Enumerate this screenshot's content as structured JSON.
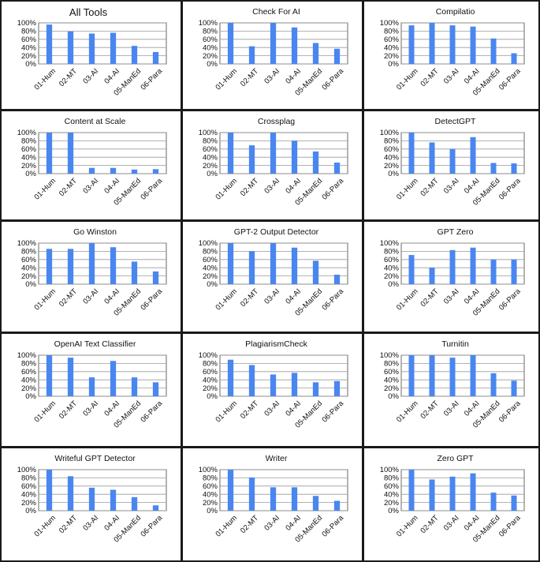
{
  "figure": {
    "categories": [
      "01-Hum",
      "02-MT",
      "03-AI",
      "04-AI",
      "05-ManEd",
      "06-Para"
    ],
    "y_ticks": [
      "0%",
      "20%",
      "40%",
      "60%",
      "80%",
      "100%"
    ],
    "bar_color": "#4a86f0",
    "grid_color": "#9a9a9a"
  },
  "chart_data": [
    {
      "type": "bar",
      "title": "All Tools",
      "categories": [
        "01-Hum",
        "02-MT",
        "03-AI",
        "04-AI",
        "05-ManEd",
        "06-Para"
      ],
      "values": [
        96,
        79,
        74,
        76,
        44,
        29
      ],
      "ylim": [
        0,
        100
      ],
      "grid": true
    },
    {
      "type": "bar",
      "title": "Check For AI",
      "categories": [
        "01-Hum",
        "02-MT",
        "03-AI",
        "04-AI",
        "05-ManEd",
        "06-Para"
      ],
      "values": [
        100,
        43,
        100,
        89,
        51,
        37
      ],
      "ylim": [
        0,
        100
      ],
      "grid": true
    },
    {
      "type": "bar",
      "title": "Compilatio",
      "categories": [
        "01-Hum",
        "02-MT",
        "03-AI",
        "04-AI",
        "05-ManEd",
        "06-Para"
      ],
      "values": [
        94,
        100,
        94,
        91,
        62,
        26
      ],
      "ylim": [
        0,
        100
      ],
      "grid": true
    },
    {
      "type": "bar",
      "title": "Content at Scale",
      "categories": [
        "01-Hum",
        "02-MT",
        "03-AI",
        "04-AI",
        "05-ManEd",
        "06-Para"
      ],
      "values": [
        100,
        100,
        14,
        14,
        10,
        11
      ],
      "ylim": [
        0,
        100
      ],
      "grid": true
    },
    {
      "type": "bar",
      "title": "Crossplag",
      "categories": [
        "01-Hum",
        "02-MT",
        "03-AI",
        "04-AI",
        "05-ManEd",
        "06-Para"
      ],
      "values": [
        100,
        69,
        100,
        80,
        54,
        27
      ],
      "ylim": [
        0,
        100
      ],
      "grid": true
    },
    {
      "type": "bar",
      "title": "DetectGPT",
      "categories": [
        "01-Hum",
        "02-MT",
        "03-AI",
        "04-AI",
        "05-ManEd",
        "06-Para"
      ],
      "values": [
        100,
        76,
        60,
        89,
        26,
        25
      ],
      "ylim": [
        0,
        100
      ],
      "grid": true
    },
    {
      "type": "bar",
      "title": "Go Winston",
      "categories": [
        "01-Hum",
        "02-MT",
        "03-AI",
        "04-AI",
        "05-ManEd",
        "06-Para"
      ],
      "values": [
        86,
        86,
        100,
        90,
        55,
        31
      ],
      "ylim": [
        0,
        100
      ],
      "grid": true
    },
    {
      "type": "bar",
      "title": "GPT-2 Output Detector",
      "categories": [
        "01-Hum",
        "02-MT",
        "03-AI",
        "04-AI",
        "05-ManEd",
        "06-Para"
      ],
      "values": [
        100,
        80,
        100,
        89,
        57,
        23
      ],
      "ylim": [
        0,
        100
      ],
      "grid": true
    },
    {
      "type": "bar",
      "title": "GPT Zero",
      "categories": [
        "01-Hum",
        "02-MT",
        "03-AI",
        "04-AI",
        "05-ManEd",
        "06-Para"
      ],
      "values": [
        71,
        40,
        83,
        89,
        60,
        60
      ],
      "ylim": [
        0,
        100
      ],
      "grid": true
    },
    {
      "type": "bar",
      "title": "OpenAI Text Classifier",
      "categories": [
        "01-Hum",
        "02-MT",
        "03-AI",
        "04-AI",
        "05-ManEd",
        "06-Para"
      ],
      "values": [
        100,
        94,
        46,
        86,
        46,
        34
      ],
      "ylim": [
        0,
        100
      ],
      "grid": true
    },
    {
      "type": "bar",
      "title": "PlagiarismCheck",
      "categories": [
        "01-Hum",
        "02-MT",
        "03-AI",
        "04-AI",
        "05-ManEd",
        "06-Para"
      ],
      "values": [
        89,
        76,
        53,
        57,
        34,
        37
      ],
      "ylim": [
        0,
        100
      ],
      "grid": true
    },
    {
      "type": "bar",
      "title": "Turnitin",
      "categories": [
        "01-Hum",
        "02-MT",
        "03-AI",
        "04-AI",
        "05-ManEd",
        "06-Para"
      ],
      "values": [
        100,
        100,
        94,
        100,
        56,
        38
      ],
      "ylim": [
        0,
        100
      ],
      "grid": true
    },
    {
      "type": "bar",
      "title": "Writeful GPT Detector",
      "categories": [
        "01-Hum",
        "02-MT",
        "03-AI",
        "04-AI",
        "05-ManEd",
        "06-Para"
      ],
      "values": [
        100,
        84,
        56,
        51,
        33,
        13
      ],
      "ylim": [
        0,
        100
      ],
      "grid": true
    },
    {
      "type": "bar",
      "title": "Writer",
      "categories": [
        "01-Hum",
        "02-MT",
        "03-AI",
        "04-AI",
        "05-ManEd",
        "06-Para"
      ],
      "values": [
        100,
        81,
        57,
        57,
        36,
        24
      ],
      "ylim": [
        0,
        100
      ],
      "grid": true
    },
    {
      "type": "bar",
      "title": "Zero GPT",
      "categories": [
        "01-Hum",
        "02-MT",
        "03-AI",
        "04-AI",
        "05-ManEd",
        "06-Para"
      ],
      "values": [
        100,
        76,
        83,
        91,
        44,
        37
      ],
      "ylim": [
        0,
        100
      ],
      "grid": true
    }
  ]
}
